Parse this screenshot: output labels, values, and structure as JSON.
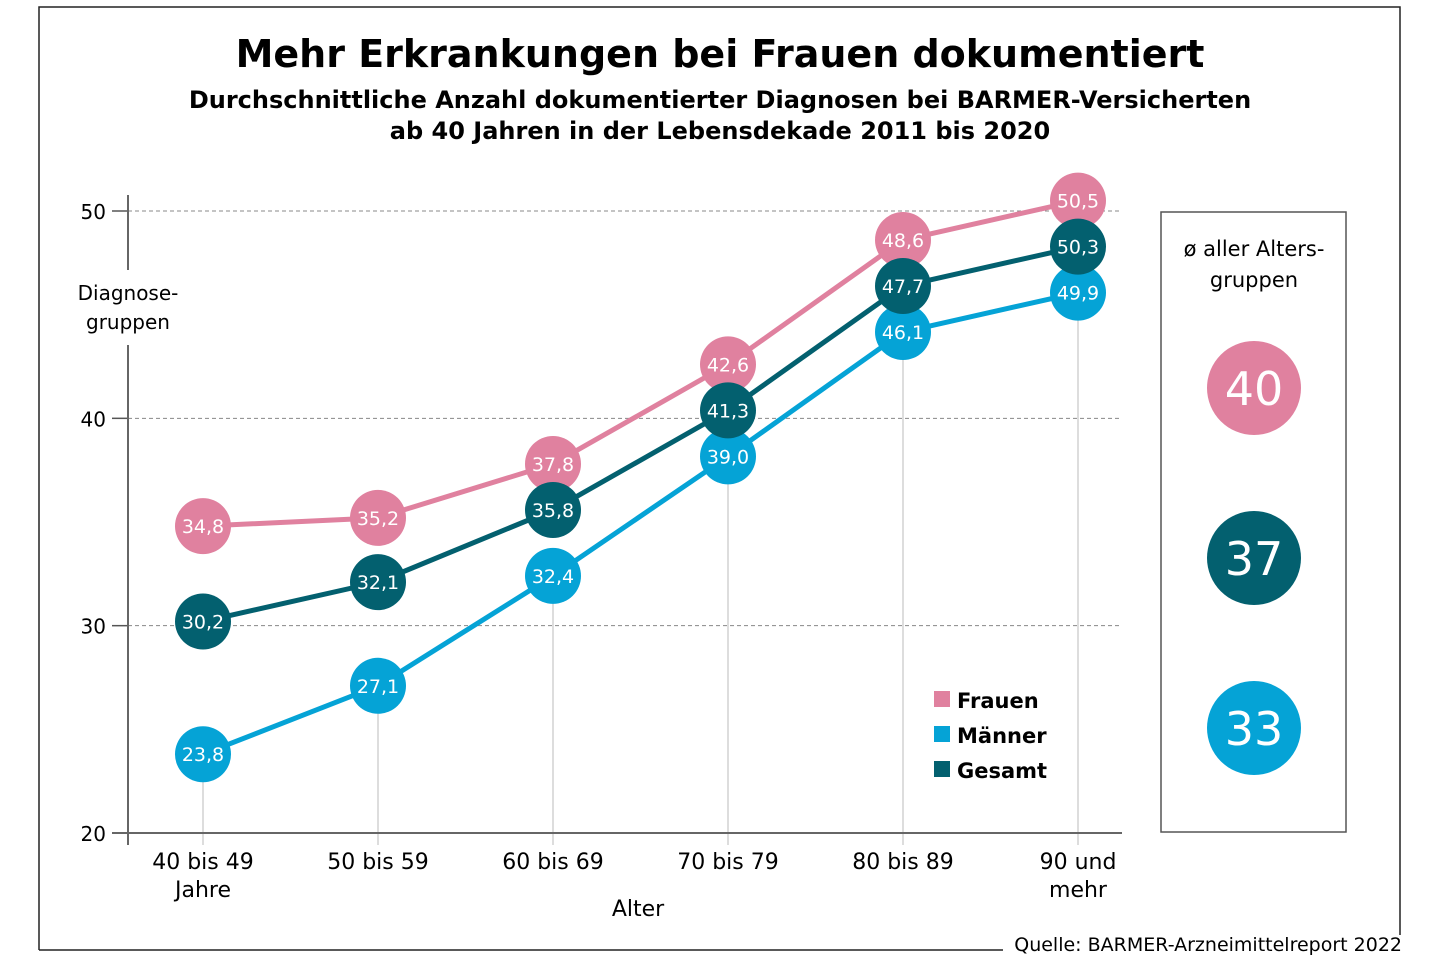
{
  "chart_data": {
    "type": "line",
    "title": "Mehr Erkrankungen bei Frauen dokumentiert",
    "subtitle_line1": "Durchschnittliche Anzahl dokumentierter Diagnosen bei BARMER-Versicherten",
    "subtitle_line2": "ab 40 Jahren in der Lebensdekade 2011 bis 2020",
    "ylabel_line1": "Diagnose-",
    "ylabel_line2": "gruppen",
    "xlabel": "Alter",
    "ylim": [
      20,
      50
    ],
    "yticks": [
      "20",
      "30",
      "40",
      "50"
    ],
    "ytick_values": [
      20,
      30,
      40,
      50
    ],
    "grid": "horizontal dashed",
    "categories": [
      [
        "40 bis 49",
        "Jahre"
      ],
      [
        "50 bis 59"
      ],
      [
        "60 bis 69"
      ],
      [
        "70 bis 79"
      ],
      [
        "80 bis 89"
      ],
      [
        "90 und",
        "mehr"
      ]
    ],
    "series": [
      {
        "name": "Frauen",
        "color": "#e0819f",
        "values": [
          34.8,
          35.2,
          37.8,
          42.6,
          48.6,
          50.5
        ],
        "labels": [
          "34,8",
          "35,2",
          "37,8",
          "42,6",
          "48,6",
          "50,5"
        ]
      },
      {
        "name": "Männer",
        "color": "#05a3d6",
        "values": [
          23.8,
          27.1,
          32.4,
          39.0,
          46.1,
          49.9
        ],
        "labels": [
          "23,8",
          "27,1",
          "32,4",
          "39,0",
          "46,1",
          "49,9"
        ]
      },
      {
        "name": "Gesamt",
        "color": "#03606f",
        "values": [
          30.2,
          32.1,
          35.8,
          41.3,
          47.7,
          50.3
        ],
        "labels": [
          "30,2",
          "32,1",
          "35,8",
          "41,3",
          "47,7",
          "50,3"
        ]
      }
    ],
    "legend_placement": "bottom-right of plot",
    "averages": {
      "title_line1": "ø aller Alters-",
      "title_line2": "gruppen",
      "items": [
        {
          "series": "Frauen",
          "value": "40",
          "color": "#e0819f"
        },
        {
          "series": "Gesamt",
          "value": "37",
          "color": "#03606f"
        },
        {
          "series": "Männer",
          "value": "33",
          "color": "#05a3d6"
        }
      ]
    },
    "source": "Quelle: BARMER-Arzneimittelreport 2022"
  }
}
